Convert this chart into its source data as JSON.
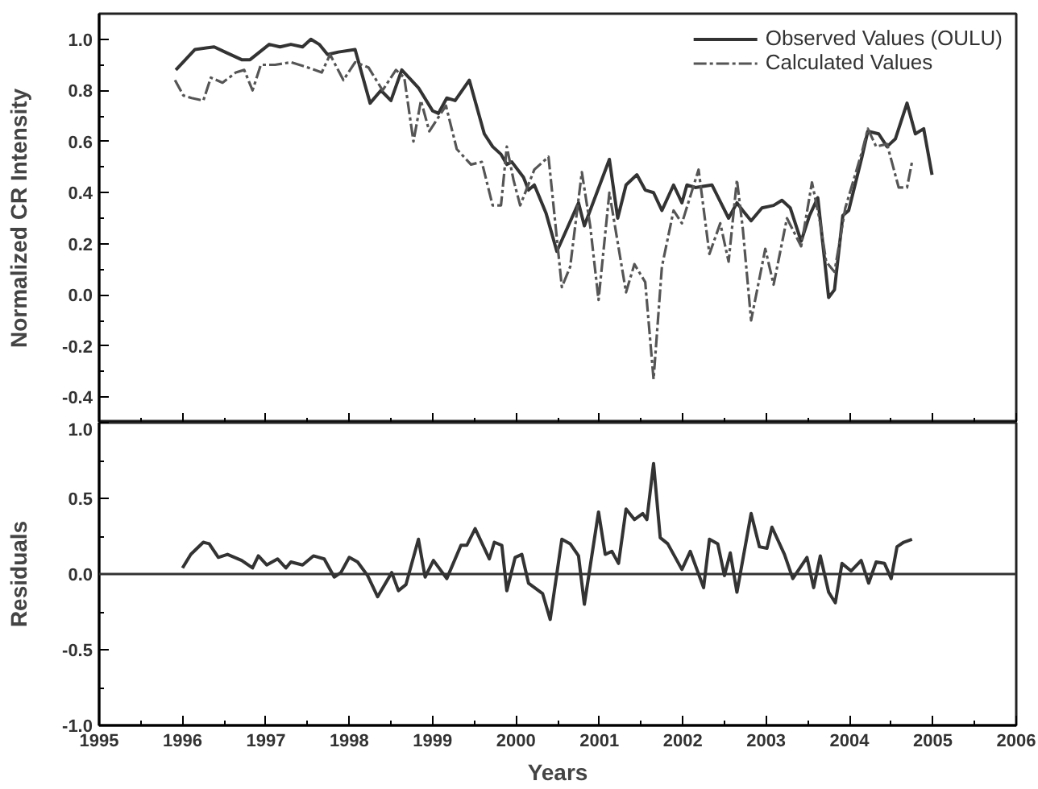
{
  "chart_data": [
    {
      "type": "line",
      "ylabel": "Normalized CR Intensity",
      "xlim": [
        1995,
        2006
      ],
      "ylim": [
        -0.5,
        1.1
      ],
      "xticks": [
        1995,
        1996,
        1997,
        1998,
        1999,
        2000,
        2001,
        2002,
        2003,
        2004,
        2005,
        2006
      ],
      "yticks": [
        {
          "value": 1.0,
          "label": "1.0"
        },
        {
          "value": 0.8,
          "label": "0.8"
        },
        {
          "value": 0.6,
          "label": "0.6"
        },
        {
          "value": 0.4,
          "label": "0.4"
        },
        {
          "value": 0.2,
          "label": "0.2"
        },
        {
          "value": 0.0,
          "label": "0.0"
        },
        {
          "value": -0.2,
          "label": "-0.2"
        },
        {
          "value": -0.4,
          "label": "-0.4"
        }
      ],
      "tick_labels": "y",
      "legend": "top right",
      "grid": false,
      "series": [
        {
          "name": "Observed Values (OULU)",
          "color": "#333333",
          "line_style": "solid",
          "x": [
            1995.92,
            1996.15,
            1996.38,
            1996.51,
            1996.71,
            1996.81,
            1997.04,
            1997.17,
            1997.3,
            1997.44,
            1997.54,
            1997.64,
            1997.74,
            1997.87,
            1998.07,
            1998.25,
            1998.38,
            1998.5,
            1998.63,
            1998.83,
            1999.0,
            1999.07,
            1999.17,
            1999.27,
            1999.44,
            1999.62,
            1999.72,
            1999.82,
            1999.89,
            1999.95,
            2000.09,
            2000.15,
            2000.22,
            2000.36,
            2000.49,
            2000.75,
            2000.82,
            2001.12,
            2001.22,
            2001.32,
            2001.45,
            2001.55,
            2001.65,
            2001.75,
            2001.89,
            2001.99,
            2002.05,
            2002.15,
            2002.35,
            2002.55,
            2002.65,
            2002.72,
            2002.82,
            2002.95,
            2003.09,
            2003.19,
            2003.29,
            2003.42,
            2003.52,
            2003.62,
            2003.75,
            2003.82,
            2003.92,
            2003.99,
            2004.15,
            2004.22,
            2004.35,
            2004.45,
            2004.55,
            2004.69,
            2004.79,
            2004.89,
            2004.99
          ],
          "values": [
            0.88,
            0.96,
            0.97,
            0.95,
            0.92,
            0.92,
            0.98,
            0.97,
            0.98,
            0.97,
            1.0,
            0.98,
            0.94,
            0.95,
            0.96,
            0.75,
            0.8,
            0.76,
            0.88,
            0.81,
            0.72,
            0.71,
            0.77,
            0.76,
            0.84,
            0.63,
            0.58,
            0.55,
            0.51,
            0.52,
            0.46,
            0.41,
            0.43,
            0.32,
            0.17,
            0.36,
            0.27,
            0.53,
            0.3,
            0.43,
            0.47,
            0.41,
            0.4,
            0.33,
            0.43,
            0.36,
            0.43,
            0.42,
            0.43,
            0.3,
            0.36,
            0.33,
            0.29,
            0.34,
            0.35,
            0.37,
            0.34,
            0.21,
            0.31,
            0.38,
            -0.01,
            0.02,
            0.31,
            0.33,
            0.54,
            0.64,
            0.63,
            0.58,
            0.61,
            0.75,
            0.63,
            0.65,
            0.47
          ]
        },
        {
          "name": "Calculated Values",
          "color": "#555555",
          "line_style": "dashed",
          "x": [
            1995.91,
            1996.01,
            1996.11,
            1996.25,
            1996.34,
            1996.48,
            1996.64,
            1996.74,
            1996.84,
            1996.94,
            1997.11,
            1997.3,
            1997.5,
            1997.67,
            1997.77,
            1997.93,
            1998.07,
            1998.23,
            1998.4,
            1998.56,
            1998.66,
            1998.77,
            1998.86,
            1998.96,
            1999.16,
            1999.29,
            1999.46,
            1999.59,
            1999.72,
            1999.82,
            1999.89,
            1999.97,
            2000.05,
            2000.22,
            2000.39,
            2000.55,
            2000.65,
            2000.79,
            2000.89,
            2000.99,
            2001.12,
            2001.32,
            2001.42,
            2001.55,
            2001.65,
            2001.75,
            2001.89,
            2001.99,
            2002.19,
            2002.32,
            2002.45,
            2002.55,
            2002.65,
            2002.72,
            2002.82,
            2002.99,
            2003.09,
            2003.25,
            2003.42,
            2003.55,
            2003.65,
            2003.72,
            2003.82,
            2003.95,
            2004.15,
            2004.22,
            2004.32,
            2004.45,
            2004.59,
            2004.69,
            2004.75
          ],
          "values": [
            0.84,
            0.78,
            0.77,
            0.76,
            0.85,
            0.83,
            0.87,
            0.88,
            0.8,
            0.9,
            0.9,
            0.91,
            0.89,
            0.87,
            0.94,
            0.84,
            0.91,
            0.89,
            0.8,
            0.88,
            0.85,
            0.6,
            0.76,
            0.64,
            0.74,
            0.57,
            0.51,
            0.52,
            0.35,
            0.35,
            0.58,
            0.45,
            0.35,
            0.49,
            0.54,
            0.03,
            0.11,
            0.48,
            0.27,
            -0.02,
            0.4,
            0.01,
            0.12,
            0.05,
            -0.33,
            0.11,
            0.33,
            0.28,
            0.49,
            0.16,
            0.28,
            0.13,
            0.45,
            0.26,
            -0.1,
            0.18,
            0.04,
            0.3,
            0.19,
            0.44,
            0.28,
            0.13,
            0.09,
            0.34,
            0.56,
            0.65,
            0.58,
            0.59,
            0.42,
            0.42,
            0.52
          ]
        }
      ]
    },
    {
      "type": "line",
      "xlabel": "Years",
      "ylabel": "Residuals",
      "xlim": [
        1995,
        2006
      ],
      "ylim": [
        -1.0,
        1.0
      ],
      "xticks": [
        1995,
        1996,
        1997,
        1998,
        1999,
        2000,
        2001,
        2002,
        2003,
        2004,
        2005,
        2006
      ],
      "yticks": [
        {
          "value": 1.0,
          "label": "1.0"
        },
        {
          "value": 0.5,
          "label": "0.5"
        },
        {
          "value": 0.0,
          "label": "0.0"
        },
        {
          "value": -0.5,
          "label": "-0.5"
        },
        {
          "value": -1.0,
          "label": "-1.0"
        }
      ],
      "grid": false,
      "ref_lines": [
        {
          "axis": "y",
          "value": 0,
          "color": "#333333"
        }
      ],
      "series": [
        {
          "color": "#333333",
          "line_style": "solid",
          "x": [
            1996.0,
            1996.1,
            1996.25,
            1996.32,
            1996.43,
            1996.54,
            1996.71,
            1996.84,
            1996.91,
            1997.01,
            1997.14,
            1997.24,
            1997.3,
            1997.44,
            1997.57,
            1997.7,
            1997.82,
            1997.9,
            1998.0,
            1998.1,
            1998.22,
            1998.34,
            1998.51,
            1998.59,
            1998.68,
            1998.83,
            1998.91,
            1999.01,
            1999.17,
            1999.34,
            1999.41,
            1999.51,
            1999.68,
            1999.74,
            1999.83,
            1999.89,
            1999.99,
            2000.07,
            2000.15,
            2000.32,
            2000.41,
            2000.55,
            2000.65,
            2000.75,
            2000.82,
            2000.99,
            2001.07,
            2001.15,
            2001.23,
            2001.32,
            2001.42,
            2001.52,
            2001.57,
            2001.65,
            2001.73,
            2001.82,
            2001.99,
            2002.09,
            2002.25,
            2002.32,
            2002.42,
            2002.5,
            2002.57,
            2002.65,
            2002.82,
            2002.92,
            2003.01,
            2003.07,
            2003.22,
            2003.32,
            2003.49,
            2003.57,
            2003.65,
            2003.75,
            2003.83,
            2003.91,
            2004.02,
            2004.14,
            2004.23,
            2004.32,
            2004.42,
            2004.5,
            2004.57,
            2004.65,
            2004.75
          ],
          "values": [
            0.04,
            0.13,
            0.21,
            0.2,
            0.11,
            0.13,
            0.09,
            0.04,
            0.12,
            0.06,
            0.1,
            0.04,
            0.08,
            0.06,
            0.12,
            0.1,
            -0.02,
            0.01,
            0.11,
            0.08,
            -0.01,
            -0.15,
            0.01,
            -0.11,
            -0.07,
            0.23,
            -0.02,
            0.09,
            -0.03,
            0.19,
            0.19,
            0.3,
            0.1,
            0.21,
            0.19,
            -0.11,
            0.11,
            0.13,
            -0.06,
            -0.13,
            -0.3,
            0.23,
            0.2,
            0.12,
            -0.2,
            0.41,
            0.13,
            0.15,
            0.07,
            0.43,
            0.36,
            0.4,
            0.36,
            0.73,
            0.24,
            0.2,
            0.03,
            0.15,
            -0.09,
            0.23,
            0.2,
            -0.01,
            0.14,
            -0.12,
            0.4,
            0.18,
            0.17,
            0.31,
            0.13,
            -0.03,
            0.11,
            -0.09,
            0.12,
            -0.12,
            -0.19,
            0.07,
            0.02,
            0.09,
            -0.06,
            0.08,
            0.07,
            -0.03,
            0.18,
            0.21,
            0.23
          ]
        }
      ]
    }
  ]
}
